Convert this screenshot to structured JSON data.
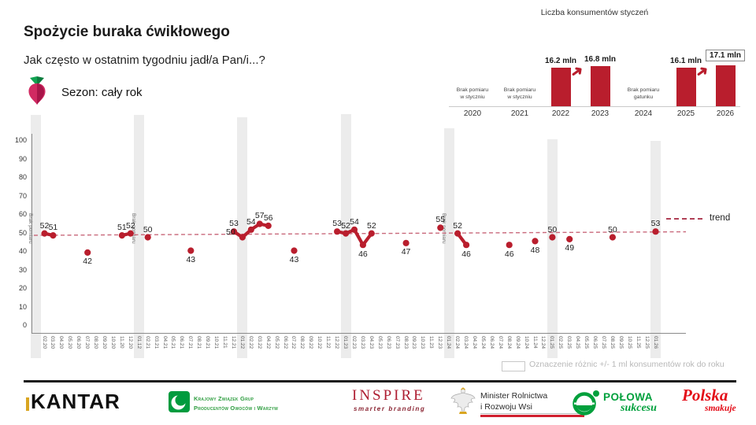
{
  "header": {
    "title": "Spożycie buraka ćwikłowego",
    "subtitle": "Jak często w ostatnim tygodniu jadł/a Pan/i...?",
    "season_label": "Sezon: cały rok",
    "season_icon": "beetroot-icon"
  },
  "mini_chart": {
    "title": "Liczba konsumentów styczeń",
    "bar_color": "#b91e2d",
    "columns": [
      {
        "year": "2020",
        "note_lines": [
          "Brak pomiaru",
          "w styczniu"
        ]
      },
      {
        "year": "2021",
        "note_lines": [
          "Brak pomiaru",
          "w styczniu"
        ]
      },
      {
        "year": "2022",
        "value": 16.2,
        "value_label": "16.2 mln"
      },
      {
        "year": "2023",
        "value": 16.8,
        "value_label": "16.8 mln",
        "arrow_from_prev": true
      },
      {
        "year": "2024",
        "note_lines": [
          "Brak pomiaru",
          "gatunku"
        ]
      },
      {
        "year": "2025",
        "value": 16.1,
        "value_label": "16.1 mln"
      },
      {
        "year": "2026",
        "value": 17.1,
        "value_label": "17.1 mln",
        "boxed": true,
        "arrow_from_prev": true
      }
    ]
  },
  "chart_data": {
    "type": "line",
    "ylim": [
      0,
      100
    ],
    "yticks": [
      0,
      10,
      20,
      30,
      40,
      50,
      60,
      70,
      80,
      90,
      100
    ],
    "x_labels": [
      "02.20",
      "03.20",
      "04.20",
      "05.20",
      "06.20",
      "07.20",
      "08.20",
      "09.20",
      "10.20",
      "11.20",
      "12.20",
      "01.12",
      "02.21",
      "03.21",
      "04.21",
      "05.21",
      "06.21",
      "07.21",
      "08.21",
      "09.21",
      "10.21",
      "11.21",
      "12.21",
      "01.22",
      "02.22",
      "03.22",
      "04.22",
      "05.22",
      "06.22",
      "07.22",
      "08.22",
      "09.22",
      "10.22",
      "11.22",
      "12.22",
      "01.23",
      "02.23",
      "03.23",
      "04.23",
      "05.23",
      "06.23",
      "07.23",
      "08.23",
      "09.23",
      "10.23",
      "11.23",
      "12.23",
      "01.24",
      "02.24",
      "03.24",
      "04.24",
      "05.24",
      "06.24",
      "07.24",
      "08.24",
      "09.24",
      "10.24",
      "11.24",
      "12.24",
      "01.25",
      "02.25",
      "03.25",
      "04.25",
      "05.25",
      "06.25",
      "07.25",
      "08.25",
      "09.25",
      "10.25",
      "11.25",
      "12.25",
      "01.26"
    ],
    "no_measurement_text": "Brak pomiaru",
    "bands": [
      {
        "month_index": -1,
        "label": true
      },
      {
        "month_index": 11,
        "label": true
      },
      {
        "month_index": 23,
        "label": false
      },
      {
        "month_index": 35,
        "label": false
      },
      {
        "month_index": 47,
        "label": true
      },
      {
        "month_index": 59,
        "label": false
      },
      {
        "month_index": 71,
        "label": false
      }
    ],
    "segments": [
      [
        {
          "x": "02.20",
          "v": 52,
          "lp": "above"
        },
        {
          "x": "03.20",
          "v": 51,
          "lp": "above"
        }
      ],
      [
        {
          "x": "07.20",
          "v": 42,
          "lp": "below"
        }
      ],
      [
        {
          "x": "11.20",
          "v": 51,
          "lp": "above"
        },
        {
          "x": "12.20",
          "v": 52,
          "lp": "above"
        }
      ],
      [
        {
          "x": "02.21",
          "v": 50,
          "lp": "above"
        }
      ],
      [
        {
          "x": "07.21",
          "v": 43,
          "lp": "below"
        }
      ],
      [
        {
          "x": "12.21",
          "v": 53,
          "lp": "above"
        },
        {
          "x": "01.22",
          "v": 50,
          "lp": "left"
        },
        {
          "x": "02.22",
          "v": 54,
          "lp": "above"
        },
        {
          "x": "03.22",
          "v": 57,
          "lp": "above"
        },
        {
          "x": "04.22",
          "v": 56,
          "lp": "above"
        }
      ],
      [
        {
          "x": "07.22",
          "v": 43,
          "lp": "below"
        }
      ],
      [
        {
          "x": "12.22",
          "v": 53,
          "lp": "above"
        },
        {
          "x": "01.23",
          "v": 52,
          "lp": "above"
        },
        {
          "x": "02.23",
          "v": 54,
          "lp": "above"
        },
        {
          "x": "03.23",
          "v": 46,
          "lp": "below"
        },
        {
          "x": "04.23",
          "v": 52,
          "lp": "above"
        }
      ],
      [
        {
          "x": "08.23",
          "v": 47,
          "lp": "below"
        }
      ],
      [
        {
          "x": "12.23",
          "v": 55,
          "lp": "above"
        }
      ],
      [
        {
          "x": "02.24",
          "v": 52,
          "lp": "above"
        },
        {
          "x": "03.24",
          "v": 46,
          "lp": "below"
        }
      ],
      [
        {
          "x": "08.24",
          "v": 46,
          "lp": "below"
        }
      ],
      [
        {
          "x": "11.24",
          "v": 48,
          "lp": "below"
        }
      ],
      [
        {
          "x": "01.25",
          "v": 50,
          "lp": "above"
        }
      ],
      [
        {
          "x": "03.25",
          "v": 49,
          "lp": "below"
        }
      ],
      [
        {
          "x": "08.25",
          "v": 50,
          "lp": "above"
        }
      ],
      [
        {
          "x": "01.26",
          "v": 53,
          "lp": "above"
        }
      ]
    ],
    "trend": {
      "label": "trend",
      "approx_value": 51.8,
      "style": "dashed"
    },
    "colors": {
      "series": "#b91e2d",
      "trend": "#c96a7c",
      "band": "#ececec"
    },
    "legend_position": "right"
  },
  "notes": {
    "diff_legend": "Oznaczenie różnic +/- 1 ml konsumentów rok do roku"
  },
  "footer": {
    "kantar": {
      "text": "KANTAR"
    },
    "kzg": {
      "line1": "Krajowy Związek Grup",
      "line2": "Producentów Owoców i Warzyw"
    },
    "inspire": {
      "text": "INSPIRE",
      "tagline": "smarter branding"
    },
    "ministry": {
      "line1": "Minister Rolnictwa",
      "line2": "i Rozwoju Wsi"
    },
    "polowa": {
      "text": "POŁOWA",
      "tagline": "sukcesu"
    },
    "polska": {
      "text": "Polska",
      "tagline": "smakuje"
    }
  }
}
